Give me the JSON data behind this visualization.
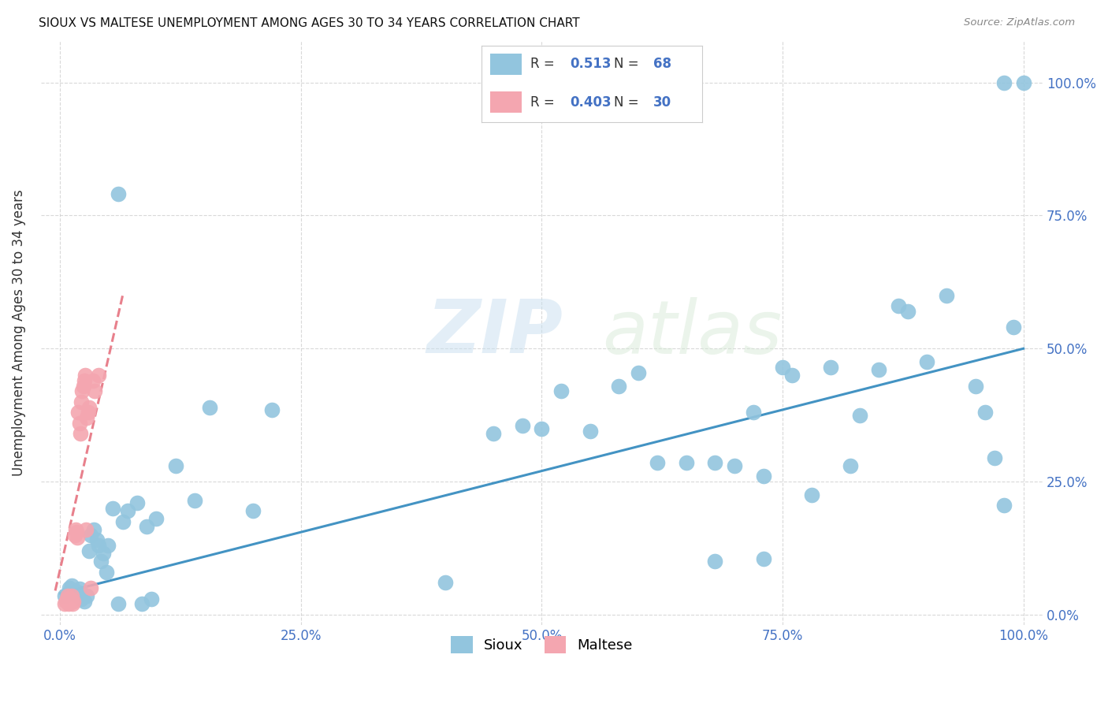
{
  "title": "SIOUX VS MALTESE UNEMPLOYMENT AMONG AGES 30 TO 34 YEARS CORRELATION CHART",
  "source": "Source: ZipAtlas.com",
  "ylabel": "Unemployment Among Ages 30 to 34 years",
  "xlim": [
    -0.02,
    1.02
  ],
  "ylim": [
    -0.02,
    1.08
  ],
  "xticks": [
    0.0,
    0.25,
    0.5,
    0.75,
    1.0
  ],
  "yticks": [
    0.0,
    0.25,
    0.5,
    0.75,
    1.0
  ],
  "xticklabels": [
    "0.0%",
    "25.0%",
    "50.0%",
    "75.0%",
    "100.0%"
  ],
  "left_yticklabels": [
    "",
    "",
    "",
    "",
    ""
  ],
  "right_yticklabels": [
    "0.0%",
    "25.0%",
    "50.0%",
    "75.0%",
    "100.0%"
  ],
  "sioux_color": "#92C5DE",
  "maltese_color": "#F4A6B0",
  "sioux_line_color": "#4393C3",
  "maltese_line_color": "#E8808C",
  "background_color": "#ffffff",
  "watermark_zip": "ZIP",
  "watermark_atlas": "atlas",
  "legend_r_sioux": "0.513",
  "legend_n_sioux": "68",
  "legend_r_maltese": "0.403",
  "legend_n_maltese": "30",
  "sioux_x": [
    0.005,
    0.008,
    0.01,
    0.012,
    0.015,
    0.018,
    0.02,
    0.022,
    0.025,
    0.028,
    0.03,
    0.032,
    0.035,
    0.038,
    0.04,
    0.042,
    0.045,
    0.048,
    0.05,
    0.055,
    0.06,
    0.065,
    0.07,
    0.08,
    0.085,
    0.09,
    0.095,
    0.1,
    0.12,
    0.14,
    0.155,
    0.2,
    0.22,
    0.4,
    0.45,
    0.48,
    0.5,
    0.52,
    0.55,
    0.58,
    0.6,
    0.62,
    0.65,
    0.68,
    0.7,
    0.72,
    0.73,
    0.75,
    0.76,
    0.78,
    0.8,
    0.82,
    0.83,
    0.85,
    0.87,
    0.88,
    0.9,
    0.92,
    0.95,
    0.96,
    0.97,
    0.98,
    0.99,
    0.68,
    0.73,
    0.98,
    1.0,
    0.06
  ],
  "sioux_y": [
    0.035,
    0.04,
    0.05,
    0.055,
    0.038,
    0.042,
    0.048,
    0.03,
    0.025,
    0.035,
    0.12,
    0.15,
    0.16,
    0.14,
    0.13,
    0.1,
    0.115,
    0.08,
    0.13,
    0.2,
    0.02,
    0.175,
    0.195,
    0.21,
    0.02,
    0.165,
    0.03,
    0.18,
    0.28,
    0.215,
    0.39,
    0.195,
    0.385,
    0.06,
    0.34,
    0.355,
    0.35,
    0.42,
    0.345,
    0.43,
    0.455,
    0.285,
    0.285,
    0.285,
    0.28,
    0.38,
    0.26,
    0.465,
    0.45,
    0.225,
    0.465,
    0.28,
    0.375,
    0.46,
    0.58,
    0.57,
    0.475,
    0.6,
    0.43,
    0.38,
    0.295,
    0.205,
    0.54,
    0.1,
    0.105,
    1.0,
    1.0,
    0.79
  ],
  "maltese_x": [
    0.005,
    0.006,
    0.007,
    0.008,
    0.009,
    0.01,
    0.011,
    0.012,
    0.013,
    0.014,
    0.015,
    0.016,
    0.017,
    0.018,
    0.019,
    0.02,
    0.021,
    0.022,
    0.023,
    0.024,
    0.025,
    0.026,
    0.027,
    0.028,
    0.029,
    0.03,
    0.032,
    0.034,
    0.036,
    0.04
  ],
  "maltese_y": [
    0.02,
    0.025,
    0.03,
    0.035,
    0.02,
    0.025,
    0.03,
    0.035,
    0.02,
    0.025,
    0.15,
    0.16,
    0.155,
    0.145,
    0.38,
    0.36,
    0.34,
    0.4,
    0.42,
    0.43,
    0.44,
    0.45,
    0.16,
    0.37,
    0.38,
    0.39,
    0.05,
    0.44,
    0.42,
    0.45
  ],
  "sioux_trend": [
    0.0,
    1.0,
    0.04,
    0.5
  ],
  "maltese_trend_x1": -0.005,
  "maltese_trend_x2": 0.065,
  "maltese_trend_y1": 0.045,
  "maltese_trend_y2": 0.6
}
